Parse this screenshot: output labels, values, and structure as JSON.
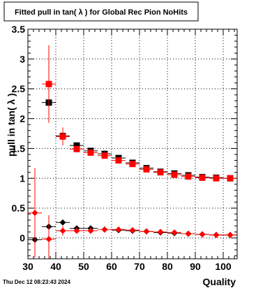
{
  "chart_data": {
    "type": "scatter",
    "title": "Fitted pull in tan( λ ) for Global Rec Pion NoHits",
    "xlabel": "Quality",
    "ylabel": "pull in tan( λ )",
    "xlim": [
      30,
      105
    ],
    "ylim": [
      -0.35,
      3.5
    ],
    "x_ticks": [
      30,
      40,
      50,
      60,
      70,
      80,
      90,
      100
    ],
    "x_tick_labels": [
      "30",
      "40",
      "50",
      "60",
      "70",
      "80",
      "90",
      "100"
    ],
    "y_ticks": [
      0,
      0.5,
      1,
      1.5,
      2,
      2.5,
      3,
      3.5
    ],
    "y_tick_labels": [
      "0",
      "0.5",
      "1",
      "1.5",
      "2",
      "2.5",
      "3",
      "3.5"
    ],
    "grid": true,
    "timestamp": "Thu Dec 12 08:23:43 2024",
    "series": [
      {
        "marker": "square",
        "color": "#000000",
        "x": [
          37.5,
          42.5,
          47.5,
          52.5,
          57.5,
          62.5,
          67.5,
          72.5,
          77.5,
          82.5,
          87.5,
          92.5,
          97.5,
          102.5
        ],
        "y": [
          2.27,
          1.71,
          1.55,
          1.46,
          1.41,
          1.34,
          1.26,
          1.17,
          1.11,
          1.08,
          1.05,
          1.02,
          1.01,
          1.0
        ],
        "yerr": [
          0.05,
          0.04,
          0.02,
          0.02,
          0.02,
          0.02,
          0.02,
          0.02,
          0.02,
          0.02,
          0.02,
          0.02,
          0.02,
          0.02
        ]
      },
      {
        "marker": "square",
        "color": "#ff0000",
        "x": [
          37.5,
          42.5,
          47.5,
          52.5,
          57.5,
          62.5,
          67.5,
          72.5,
          77.5,
          82.5,
          87.5,
          92.5,
          97.5,
          102.5
        ],
        "y": [
          2.58,
          1.7,
          1.49,
          1.43,
          1.38,
          1.3,
          1.24,
          1.15,
          1.1,
          1.06,
          1.03,
          1.01,
          1.0,
          1.0
        ],
        "yerr": [
          0.65,
          0.15,
          0.05,
          0.03,
          0.03,
          0.03,
          0.03,
          0.03,
          0.02,
          0.02,
          0.02,
          0.02,
          0.02,
          0.02
        ]
      },
      {
        "marker": "diamond",
        "color": "#000000",
        "x": [
          32.5,
          37.5,
          42.5,
          47.5,
          52.5,
          57.5,
          62.5,
          67.5,
          72.5,
          77.5,
          82.5,
          87.5,
          92.5,
          97.5,
          102.5
        ],
        "y": [
          -0.03,
          0.19,
          0.26,
          0.16,
          0.16,
          0.14,
          0.13,
          0.12,
          0.11,
          0.09,
          0.08,
          0.07,
          0.06,
          0.05,
          0.05
        ],
        "yerr": [
          0.05,
          0.05,
          0.03,
          0.02,
          0.02,
          0.02,
          0.02,
          0.02,
          0.02,
          0.02,
          0.02,
          0.02,
          0.02,
          0.02,
          0.02
        ]
      },
      {
        "marker": "diamond",
        "color": "#ff0000",
        "x": [
          32.5,
          37.5,
          42.5,
          47.5,
          52.5,
          57.5,
          62.5,
          67.5,
          72.5,
          77.5,
          82.5,
          87.5,
          92.5,
          97.5,
          102.5
        ],
        "y": [
          0.42,
          -0.02,
          0.12,
          0.12,
          0.12,
          0.14,
          0.14,
          0.13,
          0.11,
          0.1,
          0.09,
          0.07,
          0.06,
          0.05,
          0.05
        ],
        "yerr": [
          0.75,
          0.4,
          0.08,
          0.04,
          0.03,
          0.03,
          0.03,
          0.03,
          0.02,
          0.02,
          0.02,
          0.02,
          0.02,
          0.02,
          0.02
        ]
      }
    ]
  }
}
